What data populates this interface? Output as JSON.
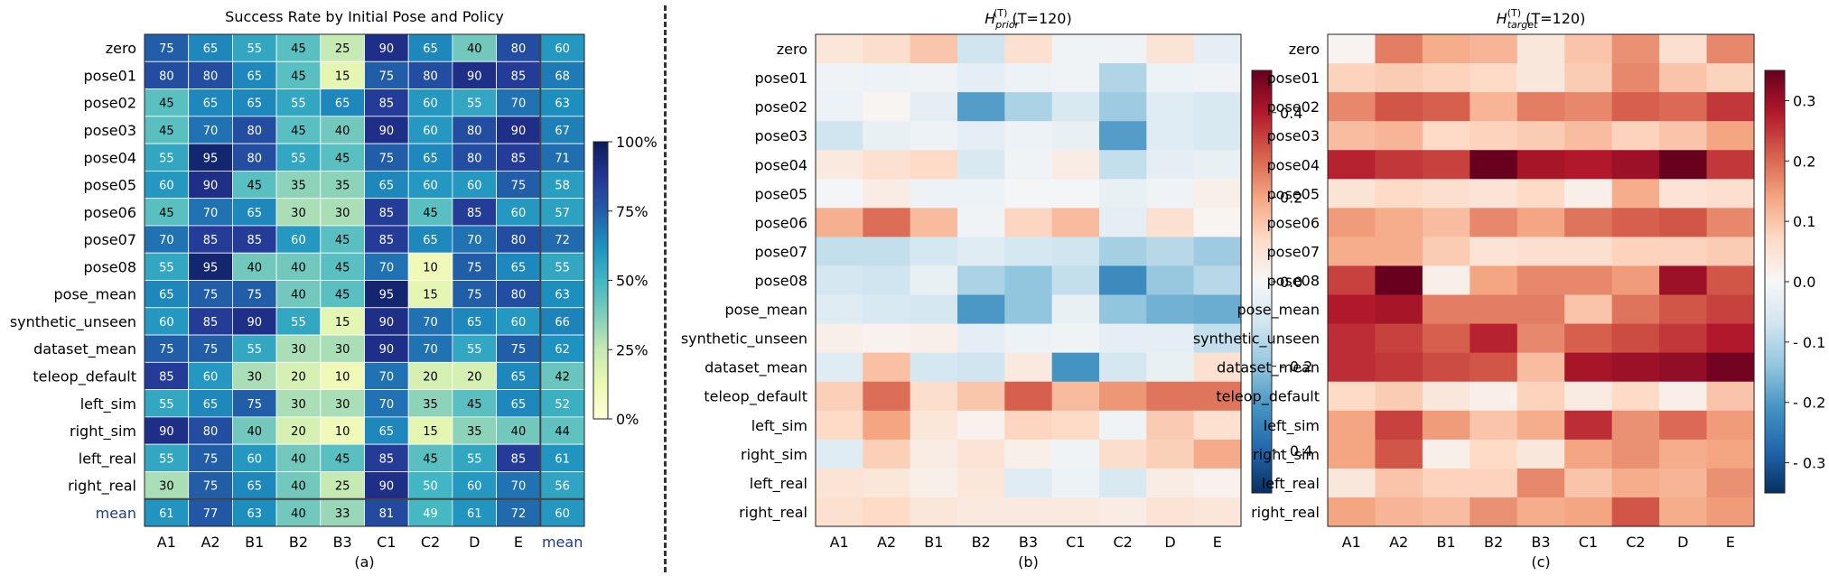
{
  "chart_data": [
    {
      "type": "heatmap",
      "title": "Success Rate by Initial Pose and Policy",
      "panel_label": "(a)",
      "x_labels": [
        "A1",
        "A2",
        "B1",
        "B2",
        "B3",
        "C1",
        "C2",
        "D",
        "E",
        "mean"
      ],
      "y_labels": [
        "zero",
        "pose01",
        "pose02",
        "pose03",
        "pose04",
        "pose05",
        "pose06",
        "pose07",
        "pose08",
        "pose_mean",
        "synthetic_unseen",
        "dataset_mean",
        "teleop_default",
        "left_sim",
        "right_sim",
        "left_real",
        "right_real",
        "mean"
      ],
      "values": [
        [
          75,
          65,
          55,
          45,
          25,
          90,
          65,
          40,
          80,
          60
        ],
        [
          80,
          80,
          65,
          45,
          15,
          75,
          80,
          90,
          85,
          68
        ],
        [
          45,
          65,
          65,
          55,
          65,
          85,
          60,
          55,
          70,
          63
        ],
        [
          45,
          70,
          80,
          45,
          40,
          90,
          60,
          80,
          90,
          67
        ],
        [
          55,
          95,
          80,
          55,
          45,
          75,
          65,
          80,
          85,
          71
        ],
        [
          60,
          90,
          45,
          35,
          35,
          65,
          60,
          60,
          75,
          58
        ],
        [
          45,
          70,
          65,
          30,
          30,
          85,
          45,
          85,
          60,
          57
        ],
        [
          70,
          85,
          85,
          60,
          45,
          85,
          65,
          70,
          80,
          72
        ],
        [
          55,
          95,
          40,
          40,
          45,
          70,
          10,
          75,
          65,
          55
        ],
        [
          65,
          75,
          75,
          40,
          45,
          95,
          15,
          75,
          80,
          63
        ],
        [
          60,
          85,
          90,
          55,
          15,
          90,
          70,
          65,
          60,
          66
        ],
        [
          75,
          75,
          55,
          30,
          30,
          90,
          70,
          55,
          75,
          62
        ],
        [
          85,
          60,
          30,
          20,
          10,
          70,
          20,
          20,
          65,
          42
        ],
        [
          55,
          65,
          75,
          30,
          30,
          70,
          35,
          45,
          65,
          52
        ],
        [
          90,
          80,
          40,
          20,
          10,
          65,
          15,
          35,
          40,
          44
        ],
        [
          55,
          75,
          60,
          40,
          45,
          85,
          45,
          55,
          85,
          61
        ],
        [
          30,
          75,
          65,
          40,
          25,
          90,
          50,
          60,
          70,
          56
        ],
        [
          61,
          77,
          63,
          40,
          33,
          81,
          49,
          61,
          72,
          60
        ]
      ],
      "colorscale": "YlGnBu",
      "color_range": [
        0,
        100
      ],
      "colorbar_ticks": [
        "0%",
        "25%",
        "50%",
        "75%",
        "100%"
      ]
    },
    {
      "type": "heatmap",
      "title_main": "H",
      "title_sup": "(T)",
      "title_sub": "prior",
      "title_suffix": " (T=120)",
      "panel_label": "(b)",
      "x_labels": [
        "A1",
        "A2",
        "B1",
        "B2",
        "B3",
        "C1",
        "C2",
        "D",
        "E"
      ],
      "y_labels": [
        "zero",
        "pose01",
        "pose02",
        "pose03",
        "pose04",
        "pose05",
        "pose06",
        "pose07",
        "pose08",
        "pose_mean",
        "synthetic_unseen",
        "dataset_mean",
        "teleop_default",
        "left_sim",
        "right_sim",
        "left_real",
        "right_real"
      ],
      "values": [
        [
          0.06,
          0.09,
          0.14,
          -0.1,
          0.08,
          -0.02,
          -0.02,
          0.07,
          -0.05
        ],
        [
          -0.02,
          -0.03,
          -0.02,
          -0.05,
          -0.03,
          -0.02,
          -0.15,
          -0.03,
          -0.02
        ],
        [
          -0.03,
          0.01,
          -0.05,
          -0.28,
          -0.16,
          -0.08,
          -0.18,
          -0.06,
          -0.08
        ],
        [
          -0.1,
          -0.04,
          -0.03,
          -0.05,
          -0.03,
          -0.04,
          -0.28,
          -0.06,
          -0.08
        ],
        [
          0.05,
          0.08,
          0.1,
          -0.08,
          -0.02,
          0.04,
          -0.12,
          -0.05,
          -0.04
        ],
        [
          -0.01,
          0.04,
          -0.03,
          -0.03,
          -0.01,
          -0.01,
          -0.04,
          -0.02,
          0.03
        ],
        [
          0.18,
          0.28,
          0.16,
          -0.02,
          0.11,
          0.16,
          -0.05,
          0.08,
          0.01
        ],
        [
          -0.12,
          -0.12,
          -0.09,
          -0.06,
          -0.09,
          -0.1,
          -0.17,
          -0.14,
          -0.18
        ],
        [
          -0.09,
          -0.1,
          -0.04,
          -0.16,
          -0.2,
          -0.12,
          -0.32,
          -0.19,
          -0.14
        ],
        [
          -0.06,
          -0.08,
          -0.09,
          -0.29,
          -0.2,
          -0.04,
          -0.2,
          -0.24,
          -0.25
        ],
        [
          0.03,
          0.02,
          0.03,
          -0.05,
          -0.03,
          -0.02,
          -0.05,
          -0.05,
          -0.12
        ],
        [
          -0.06,
          0.15,
          -0.09,
          -0.1,
          0.05,
          -0.3,
          -0.09,
          -0.04,
          0.08
        ],
        [
          0.12,
          0.28,
          0.09,
          0.14,
          0.3,
          0.16,
          0.22,
          0.27,
          0.27
        ],
        [
          0.1,
          0.2,
          0.06,
          0.02,
          0.11,
          0.1,
          -0.02,
          0.13,
          0.08
        ],
        [
          -0.06,
          0.12,
          0.04,
          0.07,
          0.03,
          -0.02,
          0.09,
          0.12,
          0.19
        ],
        [
          0.07,
          0.06,
          0.03,
          0.06,
          -0.06,
          -0.03,
          -0.08,
          0.04,
          0.02
        ],
        [
          0.08,
          0.1,
          0.06,
          0.05,
          0.05,
          0.05,
          0.04,
          0.07,
          0.06
        ]
      ],
      "colorscale": "RdBu_r",
      "color_range": [
        -0.5,
        0.5
      ],
      "colorbar_ticks": [
        "0.4",
        "0.2",
        "0.0",
        "- 0.2",
        "- 0.4"
      ],
      "colorbar_tick_values": [
        0.4,
        0.2,
        0.0,
        -0.2,
        -0.4
      ]
    },
    {
      "type": "heatmap",
      "title_main": "H",
      "title_sup": "(T)",
      "title_sub": "target",
      "title_suffix": " (T=120)",
      "panel_label": "(c)",
      "x_labels": [
        "A1",
        "A2",
        "B1",
        "B2",
        "B3",
        "C1",
        "C2",
        "D",
        "E"
      ],
      "y_labels": [
        "zero",
        "pose01",
        "pose02",
        "pose03",
        "pose04",
        "pose05",
        "pose06",
        "pose07",
        "pose08",
        "pose_mean",
        "synthetic_unseen",
        "dataset_mean",
        "teleop_default",
        "left_sim",
        "right_sim",
        "left_real",
        "right_real"
      ],
      "values": [
        [
          0.01,
          0.18,
          0.13,
          0.12,
          0.04,
          0.1,
          0.16,
          0.06,
          0.17
        ],
        [
          0.08,
          0.09,
          0.08,
          0.07,
          0.04,
          0.09,
          0.17,
          0.1,
          0.08
        ],
        [
          0.17,
          0.22,
          0.21,
          0.12,
          0.18,
          0.17,
          0.21,
          0.2,
          0.25
        ],
        [
          0.11,
          0.12,
          0.07,
          0.08,
          0.09,
          0.11,
          0.08,
          0.1,
          0.14
        ],
        [
          0.27,
          0.25,
          0.24,
          0.36,
          0.29,
          0.28,
          0.3,
          0.38,
          0.25
        ],
        [
          0.05,
          0.07,
          0.06,
          0.05,
          0.07,
          0.02,
          0.13,
          0.05,
          0.06
        ],
        [
          0.15,
          0.13,
          0.11,
          0.17,
          0.14,
          0.19,
          0.21,
          0.22,
          0.17
        ],
        [
          0.13,
          0.13,
          0.09,
          0.05,
          0.06,
          0.06,
          0.08,
          0.08,
          0.09
        ],
        [
          0.24,
          0.37,
          0.02,
          0.14,
          0.17,
          0.17,
          0.15,
          0.3,
          0.22
        ],
        [
          0.28,
          0.29,
          0.18,
          0.18,
          0.18,
          0.1,
          0.19,
          0.22,
          0.24
        ],
        [
          0.26,
          0.24,
          0.21,
          0.27,
          0.17,
          0.21,
          0.23,
          0.25,
          0.28
        ],
        [
          0.26,
          0.25,
          0.23,
          0.22,
          0.11,
          0.29,
          0.3,
          0.31,
          0.34
        ],
        [
          0.07,
          0.09,
          0.04,
          0.02,
          0.08,
          0.03,
          0.07,
          0.02,
          0.1
        ],
        [
          0.14,
          0.24,
          0.15,
          0.1,
          0.13,
          0.26,
          0.16,
          0.2,
          0.15
        ],
        [
          0.14,
          0.22,
          0.02,
          0.07,
          0.04,
          0.14,
          0.16,
          0.13,
          0.14
        ],
        [
          0.04,
          0.1,
          0.08,
          0.08,
          0.17,
          0.1,
          0.13,
          0.12,
          0.16
        ],
        [
          0.14,
          0.12,
          0.11,
          0.16,
          0.13,
          0.14,
          0.22,
          0.13,
          0.15
        ]
      ],
      "colorscale": "RdBu_r",
      "color_range": [
        -0.35,
        0.35
      ],
      "colorbar_ticks": [
        "0.3",
        "0.2",
        "0.1",
        "0.0",
        "- 0.1",
        "- 0.2",
        "- 0.3"
      ],
      "colorbar_tick_values": [
        0.3,
        0.2,
        0.1,
        0.0,
        -0.1,
        -0.2,
        -0.3
      ]
    }
  ]
}
